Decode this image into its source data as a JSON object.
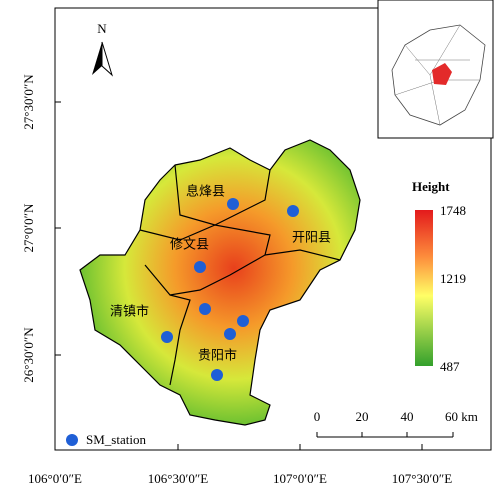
{
  "map": {
    "north": "N",
    "x_labels": [
      "106°0′0″E",
      "106°30′0″E",
      "107°0′0″E",
      "107°30′0″E"
    ],
    "y_labels": [
      "27°30′0″N",
      "27°0′0″N",
      "26°30′0″N"
    ],
    "regions": [
      "息烽县",
      "开阳县",
      "修文县",
      "清镇市",
      "贵阳市"
    ],
    "legend": {
      "title": "Height",
      "max": 1748,
      "mid": 1219,
      "min": 487
    },
    "station_legend": "SM_station",
    "scale_bar": [
      "0",
      "20",
      "40",
      "60 km"
    ]
  }
}
